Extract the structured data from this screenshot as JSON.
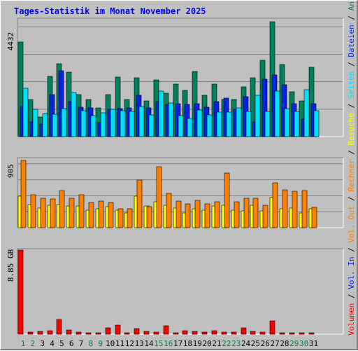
{
  "chart_data": {
    "type": "bar",
    "title": "Tages-Statistik im Monat November 2025",
    "x": [
      "1",
      "2",
      "3",
      "4",
      "5",
      "6",
      "7",
      "8",
      "9",
      "10",
      "11",
      "12",
      "13",
      "14",
      "15",
      "16",
      "17",
      "18",
      "19",
      "20",
      "21",
      "22",
      "23",
      "24",
      "25",
      "26",
      "27",
      "28",
      "29",
      "30",
      "31"
    ],
    "weekend_days": [
      "1",
      "2",
      "8",
      "9",
      "15",
      "16",
      "22",
      "23",
      "29",
      "30"
    ],
    "panels": [
      {
        "id": "requests",
        "max_label": "4432",
        "ymax": 4432,
        "series": [
          {
            "name": "Anfragen",
            "color": "#00805c",
            "values": [
              3660,
              1430,
              760,
              2320,
              2800,
              2490,
              1620,
              1420,
              1120,
              1620,
              2300,
              1430,
              2270,
              1390,
              2190,
              1670,
              2020,
              1780,
              2520,
              1600,
              2040,
              1420,
              1420,
              1920,
              2280,
              2950,
              4432,
              2770,
              1720,
              1370,
              2680
            ]
          },
          {
            "name": "Dateien",
            "color": "#0024e0",
            "values": [
              1170,
              560,
              480,
              1610,
              2550,
              1360,
              1140,
              1110,
              550,
              1050,
              1080,
              1100,
              1590,
              1110,
              1340,
              1230,
              1280,
              1240,
              1270,
              1140,
              1340,
              1480,
              1050,
              1530,
              580,
              2210,
              2370,
              1990,
              1260,
              680,
              1280
            ]
          },
          {
            "name": "Seiten",
            "color": "#00e0ff",
            "values": [
              1870,
              1060,
              880,
              860,
              1070,
              1690,
              990,
              800,
              910,
              1060,
              1000,
              980,
              1150,
              840,
              1770,
              1290,
              810,
              710,
              1030,
              840,
              940,
              940,
              1110,
              970,
              1600,
              960,
              1750,
              1090,
              960,
              1800,
              1000
            ]
          }
        ]
      },
      {
        "id": "visits",
        "max_label": "905",
        "ymax": 905,
        "series": [
          {
            "name": "Besuche",
            "color": "#ffff00",
            "values": [
              420,
              315,
              265,
              300,
              310,
              290,
              290,
              235,
              255,
              280,
              235,
              195,
              420,
              290,
              345,
              305,
              260,
              200,
              255,
              235,
              290,
              305,
              240,
              230,
              305,
              225,
              410,
              255,
              265,
              195,
              250
            ]
          },
          {
            "name": "Rechner",
            "color": "#ff8000",
            "values": [
              905,
              445,
              400,
              385,
              500,
              400,
              445,
              335,
              355,
              335,
              250,
              255,
              645,
              285,
              820,
              460,
              360,
              325,
              370,
              320,
              350,
              735,
              350,
              400,
              400,
              300,
              605,
              505,
              490,
              500,
              275
            ]
          }
        ]
      },
      {
        "id": "volume",
        "max_label": "8.85 GB",
        "ymax": 8.85,
        "unit": "GB",
        "series": [
          {
            "name": "Volumen",
            "color": "#ff0000",
            "values": [
              8.85,
              0.21,
              0.28,
              0.4,
              1.55,
              0.42,
              0.19,
              0.17,
              0.16,
              0.7,
              0.93,
              0.15,
              0.62,
              0.26,
              0.23,
              0.86,
              0.15,
              0.4,
              0.33,
              0.22,
              0.34,
              0.22,
              0.2,
              0.7,
              0.27,
              0.25,
              1.4,
              0.18,
              0.18,
              0.18,
              0.17
            ]
          }
        ]
      }
    ],
    "side_legend": [
      {
        "label": "Anfragen",
        "color": "#00805c",
        "panel": "requests"
      },
      {
        "label": "Dateien",
        "color": "#0024e0",
        "panel": "requests"
      },
      {
        "label": "Seiten",
        "color": "#00e0ff",
        "panel": "requests"
      },
      {
        "label": "Besuche",
        "color": "#ffff00",
        "panel": "visits"
      },
      {
        "label": "Rechner",
        "color": "#ff8000",
        "panel": "visits"
      },
      {
        "label": "Vol. Out",
        "color": "#ff8000",
        "panel": "volume"
      },
      {
        "label": "Vol. In",
        "color": "#0024e0",
        "panel": "volume"
      },
      {
        "label": "Volumen",
        "color": "#ff0000",
        "panel": "volume"
      }
    ],
    "legend_separator": " / ",
    "colors": {
      "background": "#c0c0c0",
      "title": "#0000ff",
      "axis_text": "#000000",
      "weekend_label": "#008040",
      "grid": "#808080"
    }
  }
}
